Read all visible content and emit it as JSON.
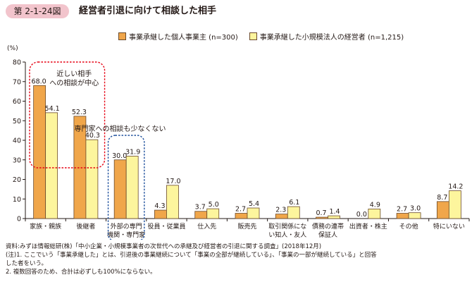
{
  "figure_label": "第 2-1-24図",
  "title": "経営者引退に向けて相談した相手",
  "chart_data": {
    "type": "bar",
    "ylabel": "(%)",
    "ylim": [
      0,
      80
    ],
    "yticks": [
      0,
      10,
      20,
      30,
      40,
      50,
      60,
      70,
      80
    ],
    "grid": false,
    "legend_position": "top",
    "categories": [
      [
        "家族・親族"
      ],
      [
        "後継者"
      ],
      [
        "外部の専門",
        "機関・専門家"
      ],
      [
        "役員・従業員"
      ],
      [
        "仕入先"
      ],
      [
        "販売先"
      ],
      [
        "取引関係にな",
        "い知人・友人"
      ],
      [
        "債務の連帯",
        "保証人"
      ],
      [
        "出資者・株主"
      ],
      [
        "その他"
      ],
      [
        "特にいない"
      ]
    ],
    "series": [
      {
        "name": "事業承継した個人事業主 (n=300)",
        "color": "#f0a64a",
        "values": [
          68.0,
          52.3,
          30.0,
          4.3,
          3.7,
          2.7,
          2.3,
          0.7,
          0.0,
          2.7,
          8.7
        ],
        "labels": [
          "68.0",
          "52.3",
          "30.0",
          "4.3",
          "3.7",
          "2.7",
          "2.3",
          "0.7",
          "0.0",
          "2.7",
          "8.7"
        ]
      },
      {
        "name": "事業承継した小規模法人の経営者 (n=1,215)",
        "color": "#fdf59d",
        "values": [
          54.1,
          40.3,
          31.9,
          17.0,
          5.0,
          5.4,
          6.1,
          1.4,
          4.9,
          3.0,
          14.2
        ],
        "labels": [
          "54.1",
          "40.3",
          "31.9",
          "17.0",
          "5.0",
          "5.4",
          "6.1",
          "1.4",
          "4.9",
          "3.0",
          "14.2"
        ]
      }
    ],
    "annotations": [
      {
        "text": [
          "近しい相手",
          "への相談が中心"
        ],
        "color": "#e60012"
      },
      {
        "text": [
          "専門家への相談も少なくない"
        ],
        "color": "#1d4f9c"
      }
    ]
  },
  "notes": [
    "資料:みずほ情報総研(株)「中小企業・小規模事業者の次世代への承継及び経営者の引退に関する調査」(2018年12月)",
    "(注)1. ここでいう「事業承継した」とは、引退後の事業継続について「事業の全部が継続している」、「事業の一部が継続している」と回答",
    "      した者をいう。",
    "    2. 複数回答のため、合計は必ずしも100%にならない。"
  ]
}
